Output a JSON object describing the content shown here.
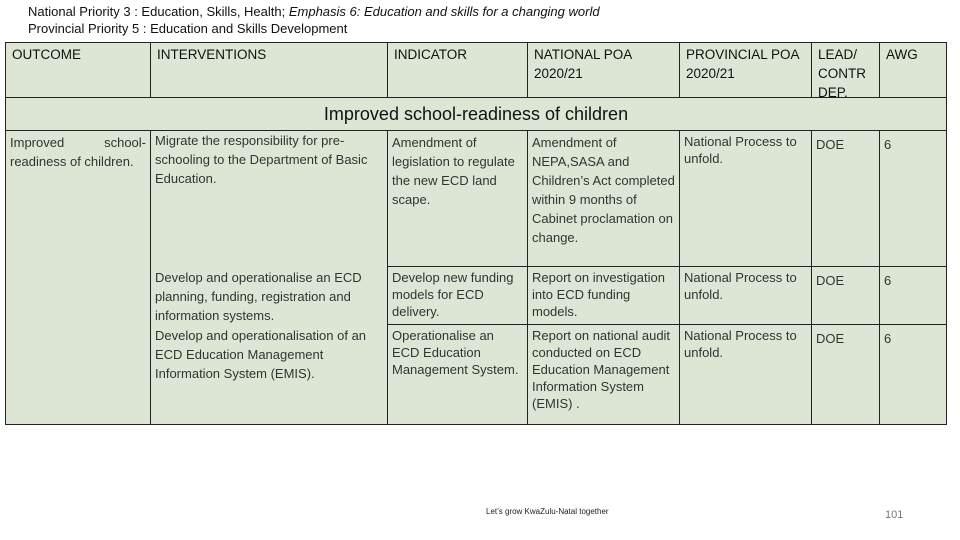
{
  "header": {
    "line1_main": "National Priority 3 : Education, Skills, Health; ",
    "line1_emphasis": "Emphasis 6: Education and skills for a changing world",
    "line2": "Provincial Priority 5 : Education and Skills Development"
  },
  "table": {
    "columns": [
      "OUTCOME",
      "INTERVENTIONS",
      "INDICATOR",
      "NATIONAL POA 2020/21",
      "PROVINCIAL POA 2020/21",
      "LEAD/ CONTR DEP.",
      "AWG"
    ],
    "section": "Improved school-readiness of children",
    "outcome": "Improved school-readiness of children.",
    "rows": [
      {
        "intervention": "Migrate the responsibility for pre-schooling to the Department of Basic Education.",
        "indicator": "Amendment of legislation to regulate the new ECD land scape.",
        "national": "Amendment of NEPA,SASA and Children’s Act completed within 9 months of Cabinet proclamation on change.",
        "provincial": "National Process to unfold.",
        "lead": "DOE",
        "awg": "6"
      },
      {
        "intervention": "Develop and operationalise an ECD planning, funding, registration and information systems.",
        "indicator": "Develop new funding models for ECD delivery.",
        "national": "Report on investigation into ECD funding models.",
        "provincial": "National Process to unfold.",
        "lead": "DOE",
        "awg": "6"
      },
      {
        "intervention": "Develop and operationalisation of an ECD Education Management Information System  (EMIS).",
        "indicator": "Operationalise an ECD Education Management System.",
        "national": "Report on national audit conducted on ECD Education Management Information System (EMIS) .",
        "provincial": "National Process to unfold.",
        "lead": "DOE",
        "awg": "6"
      }
    ]
  },
  "footer": {
    "tagline": "Let’s grow KwaZulu-Natal together",
    "page": "101"
  }
}
